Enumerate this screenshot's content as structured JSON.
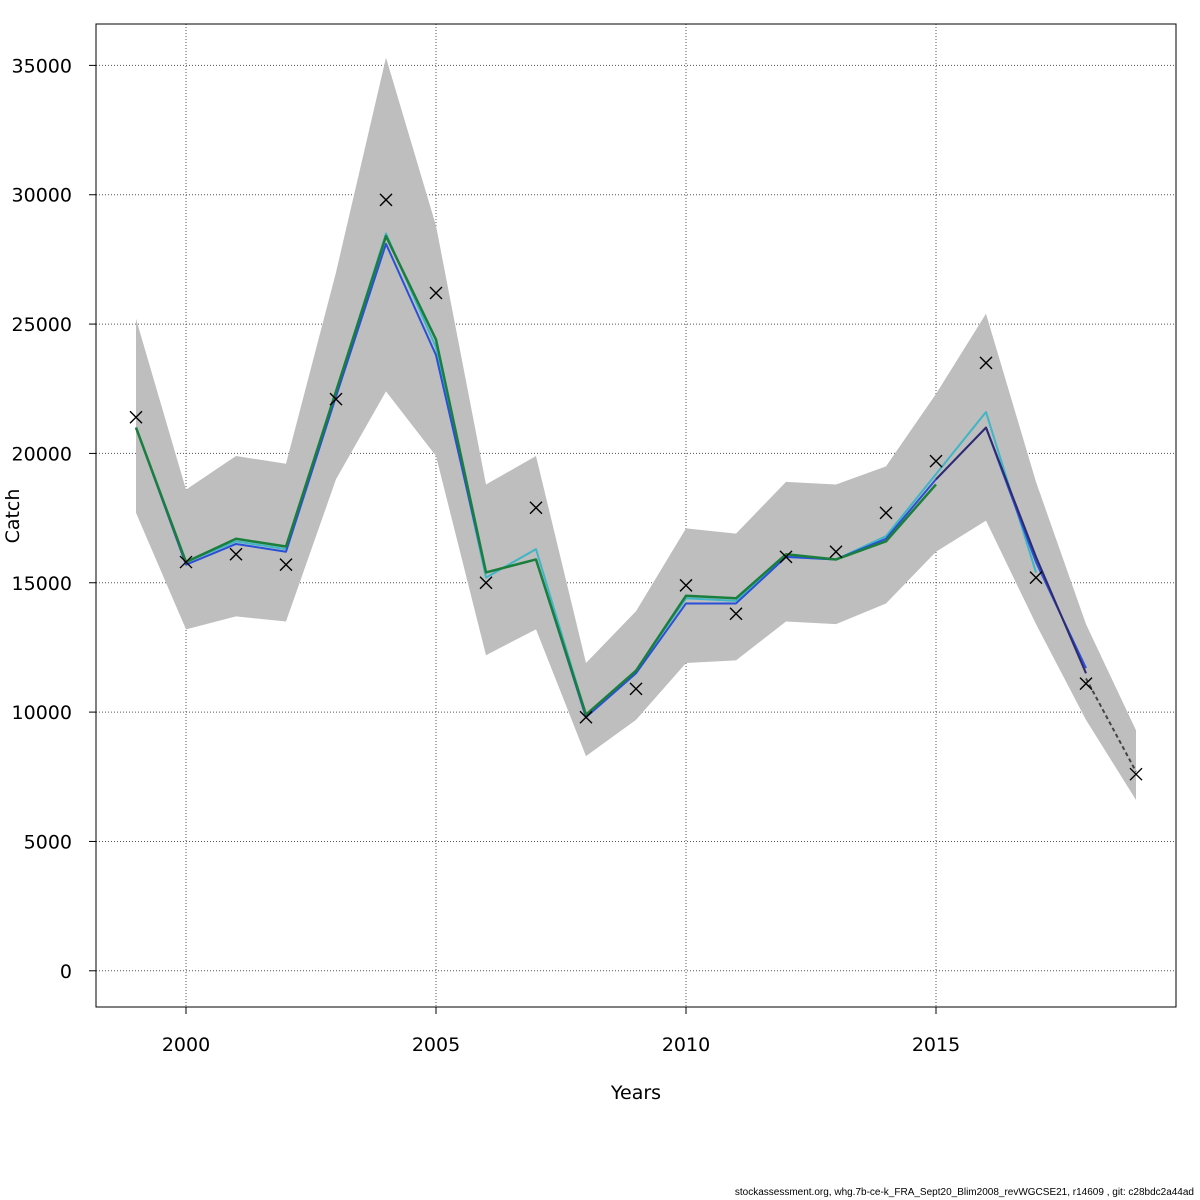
{
  "chart_data": {
    "type": "line",
    "title": "",
    "xlabel": "Years",
    "ylabel": "Catch",
    "xlim": [
      1998.2,
      2019.8
    ],
    "ylim": [
      -1400,
      36600
    ],
    "x_ticks": [
      2000,
      2005,
      2010,
      2015
    ],
    "y_ticks": [
      0,
      5000,
      10000,
      15000,
      20000,
      25000,
      30000,
      35000
    ],
    "grid": true,
    "confidence_band": {
      "color": "#bebebe",
      "x": [
        1999,
        2000,
        2001,
        2002,
        2003,
        2004,
        2005,
        2006,
        2007,
        2008,
        2009,
        2010,
        2011,
        2012,
        2013,
        2014,
        2015,
        2016,
        2017,
        2018,
        2019
      ],
      "upper": [
        25200,
        18600,
        19900,
        19600,
        27000,
        35300,
        28800,
        18800,
        19900,
        11900,
        13900,
        17100,
        16900,
        18900,
        18800,
        19500,
        22300,
        25400,
        18900,
        13400,
        9300
      ],
      "lower": [
        17700,
        13200,
        13700,
        13500,
        19000,
        22400,
        19900,
        12200,
        13200,
        8300,
        9700,
        11900,
        12000,
        13500,
        13400,
        14200,
        16200,
        17400,
        13400,
        9700,
        6600
      ]
    },
    "observations": {
      "marker": "x",
      "x": [
        1999,
        2000,
        2001,
        2002,
        2003,
        2004,
        2005,
        2006,
        2007,
        2008,
        2009,
        2010,
        2011,
        2012,
        2013,
        2014,
        2015,
        2016,
        2017,
        2018,
        2019
      ],
      "y": [
        21400,
        15800,
        16100,
        15700,
        22100,
        29800,
        26200,
        15000,
        17900,
        9800,
        10900,
        14900,
        13800,
        16000,
        16200,
        17700,
        19700,
        23500,
        15200,
        11100,
        7600
      ]
    },
    "series": [
      {
        "color": "#3fb5c5",
        "width": 2,
        "dash": "",
        "x": [
          1999,
          2000,
          2001,
          2002,
          2003,
          2004,
          2005,
          2006,
          2007,
          2008,
          2009,
          2010,
          2011,
          2012,
          2013,
          2014,
          2015,
          2016,
          2017
        ],
        "y": [
          21000,
          15800,
          16600,
          16300,
          22400,
          28500,
          24100,
          15200,
          16300,
          9900,
          11600,
          14400,
          14300,
          16000,
          15900,
          16800,
          19200,
          21600,
          15400
        ]
      },
      {
        "color": "#2a4fd8",
        "width": 2,
        "dash": "",
        "x": [
          1999,
          2000,
          2001,
          2002,
          2003,
          2004,
          2005,
          2006,
          2007,
          2008,
          2009,
          2010,
          2011,
          2012,
          2013,
          2014,
          2015,
          2016,
          2017,
          2018
        ],
        "y": [
          21000,
          15700,
          16500,
          16200,
          22200,
          28100,
          23800,
          15400,
          15900,
          9800,
          11500,
          14200,
          14200,
          16000,
          15900,
          16700,
          19000,
          21000,
          15800,
          11700
        ]
      },
      {
        "color": "#2e2a6e",
        "width": 2,
        "dash": "",
        "x": [
          2015,
          2016,
          2017,
          2018
        ],
        "y": [
          19000,
          21000,
          16000,
          11500
        ]
      },
      {
        "color": "#1a7f3c",
        "width": 2.5,
        "dash": "",
        "x": [
          1999,
          2000,
          2001,
          2002,
          2003,
          2004,
          2005,
          2006,
          2007,
          2008,
          2009,
          2010,
          2011,
          2012,
          2013,
          2014,
          2015
        ],
        "y": [
          21000,
          15800,
          16700,
          16400,
          22400,
          28400,
          24400,
          15400,
          15900,
          9900,
          11600,
          14500,
          14400,
          16100,
          15900,
          16600,
          18800
        ]
      },
      {
        "color": "#444444",
        "width": 2,
        "dash": "4,3",
        "x": [
          2018,
          2019
        ],
        "y": [
          11300,
          7700
        ]
      }
    ]
  },
  "footer": {
    "text": "stockassessment.org, whg.7b-ce-k_FRA_Sept20_Blim2008_revWGCSE21, r14609 , git: c28bdc2a44ad"
  }
}
